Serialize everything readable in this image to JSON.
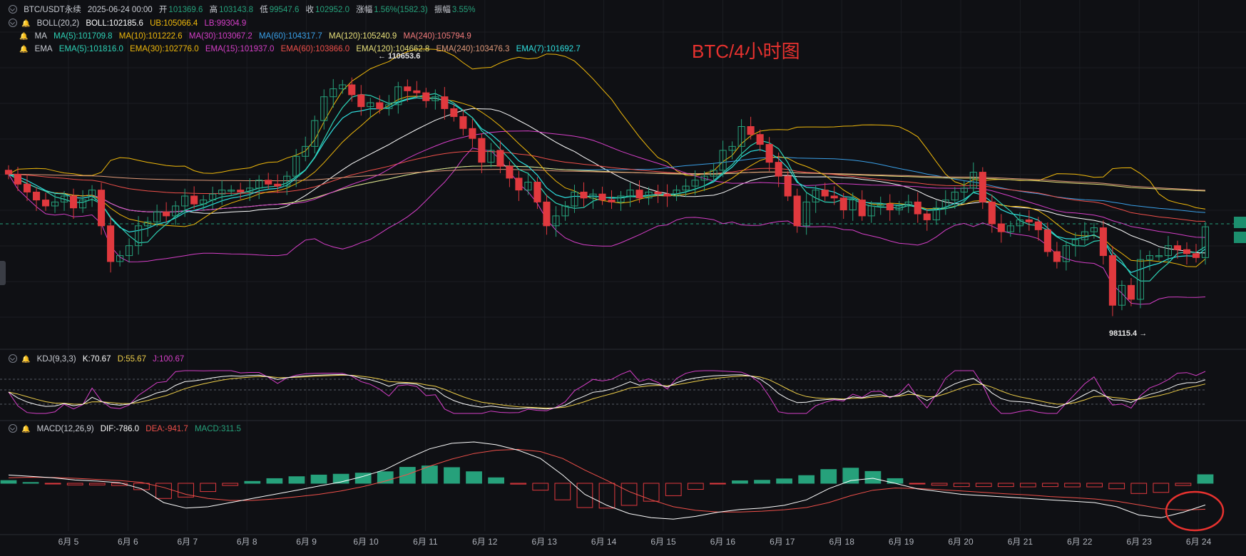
{
  "header": {
    "symbol": "BTC/USDT永续",
    "datetime": "2025-06-24 00:00",
    "open_label": "开",
    "open": "101369.6",
    "high_label": "高",
    "high": "103143.8",
    "low_label": "低",
    "low": "99547.6",
    "close_label": "收",
    "close": "102952.0",
    "change_label": "涨幅",
    "change": "1.56%(1582.3)",
    "amp_label": "振幅",
    "amp": "3.55%"
  },
  "boll": {
    "name": "BOLL(20,2)",
    "boll": "BOLL:102185.6",
    "ub": "UB:105066.4",
    "lb": "LB:99304.9"
  },
  "ma": {
    "name": "MA",
    "ma5": "MA(5):101709.8",
    "ma10": "MA(10):101222.6",
    "ma30": "MA(30):103067.2",
    "ma60": "MA(60):104317.7",
    "ma120": "MA(120):105240.9",
    "ma240": "MA(240):105794.9"
  },
  "ema": {
    "name": "EMA",
    "ema5": "EMA(5):101816.0",
    "ema30": "EMA(30):102776.0",
    "ema15": "EMA(15):101937.0",
    "ema60": "EMA(60):103866.0",
    "ema120": "EMA(120):104662.8",
    "ema240": "EMA(240):103476.3",
    "ema7": "EMA(7):101692.7"
  },
  "kdj": {
    "name": "KDJ(9,3,3)",
    "k": "K:70.67",
    "d": "D:55.67",
    "j": "J:100.67"
  },
  "macd": {
    "name": "MACD(12,26,9)",
    "dif": "DIF:-786.0",
    "dea": "DEA:-941.7",
    "macd": "MACD:311.5"
  },
  "title": "BTC/4小时图",
  "max_label": "← 110653.6",
  "min_label": "98115.4 →",
  "colors": {
    "up": "#26a17b",
    "down": "#e0393e",
    "bg": "#0f1014",
    "annotation": "#e8322f"
  },
  "chart_data": {
    "type": "candlestick",
    "interval": "4h",
    "x_ticks": [
      "6月 5",
      "6月 6",
      "6月 7",
      "6月 8",
      "6月 9",
      "6月 10",
      "6月 11",
      "6月 12",
      "6月 13",
      "6月 14",
      "6月 15",
      "6月 16",
      "6月 17",
      "6月 18",
      "6月 19",
      "6月 20",
      "6月 21",
      "6月 22",
      "6月 23",
      "6月 24"
    ],
    "price_range": [
      97500,
      111500
    ],
    "extremes": {
      "high": 110653.6,
      "low": 98115.4
    },
    "closes": [
      105600,
      105100,
      104700,
      104300,
      104000,
      104200,
      104500,
      103900,
      104300,
      104800,
      103000,
      101200,
      101500,
      102000,
      103000,
      103200,
      103700,
      103500,
      104000,
      104500,
      104100,
      104300,
      104600,
      104800,
      104800,
      104700,
      104900,
      105300,
      105100,
      105000,
      105500,
      106500,
      107000,
      108300,
      109500,
      109900,
      110100,
      109600,
      109000,
      109200,
      108900,
      109100,
      110000,
      109800,
      109700,
      109300,
      109500,
      108900,
      108500,
      107900,
      107400,
      106200,
      106800,
      106000,
      105400,
      104800,
      105200,
      104200,
      103000,
      103500,
      104000,
      104700,
      104400,
      104600,
      104300,
      104200,
      104500,
      104800,
      104400,
      104700,
      104600,
      104500,
      104800,
      105000,
      105300,
      105500,
      105800,
      106800,
      107000,
      108000,
      107600,
      107100,
      106200,
      105500,
      104500,
      103000,
      104200,
      104800,
      104500,
      104400,
      103800,
      104300,
      103500,
      104000,
      104100,
      103800,
      104000,
      104200,
      103600,
      103300,
      103900,
      104300,
      104700,
      104900,
      105700,
      104200,
      103100,
      102700,
      103000,
      103300,
      103200,
      102800,
      101700,
      101200,
      102000,
      102300,
      102700,
      102900,
      101500,
      99000,
      100000,
      99300,
      101300,
      101500,
      101500,
      102000,
      101800,
      101600,
      101400,
      102952
    ],
    "macd": {
      "dif": [
        300,
        250,
        200,
        120,
        80,
        20,
        -200,
        -700,
        -900,
        -850,
        -700,
        -550,
        -400,
        -250,
        -100,
        50,
        250,
        500,
        900,
        1250,
        1450,
        1500,
        1400,
        1200,
        900,
        300,
        -400,
        -800,
        -1100,
        -1250,
        -1300,
        -1200,
        -1050,
        -950,
        -900,
        -800,
        -600,
        -200,
        100,
        180,
        0,
        -200,
        -300,
        -400,
        -450,
        -500,
        -550,
        -600,
        -650,
        -700,
        -850,
        -1150,
        -1250,
        -1050,
        -786
      ],
      "dea": [
        200,
        220,
        210,
        180,
        140,
        100,
        30,
        -150,
        -400,
        -550,
        -620,
        -620,
        -570,
        -490,
        -400,
        -280,
        -120,
        80,
        320,
        620,
        880,
        1080,
        1200,
        1230,
        1150,
        900,
        480,
        100,
        -300,
        -600,
        -850,
        -980,
        -1040,
        -1040,
        -1010,
        -960,
        -880,
        -700,
        -450,
        -250,
        -170,
        -190,
        -230,
        -280,
        -330,
        -380,
        -420,
        -480,
        -520,
        -570,
        -650,
        -780,
        -920,
        -970,
        -941.7
      ],
      "hist": [
        100,
        30,
        -10,
        -60,
        -60,
        -80,
        -230,
        -550,
        -500,
        -300,
        -80,
        70,
        170,
        240,
        300,
        330,
        370,
        420,
        580,
        630,
        570,
        420,
        200,
        -30,
        -250,
        -600,
        -880,
        -900,
        -800,
        -650,
        -450,
        -220,
        -10,
        90,
        110,
        160,
        280,
        500,
        550,
        430,
        170,
        -10,
        -70,
        -120,
        -120,
        -120,
        -130,
        -120,
        -130,
        -130,
        -200,
        -370,
        -330,
        -80,
        311.5
      ]
    }
  }
}
